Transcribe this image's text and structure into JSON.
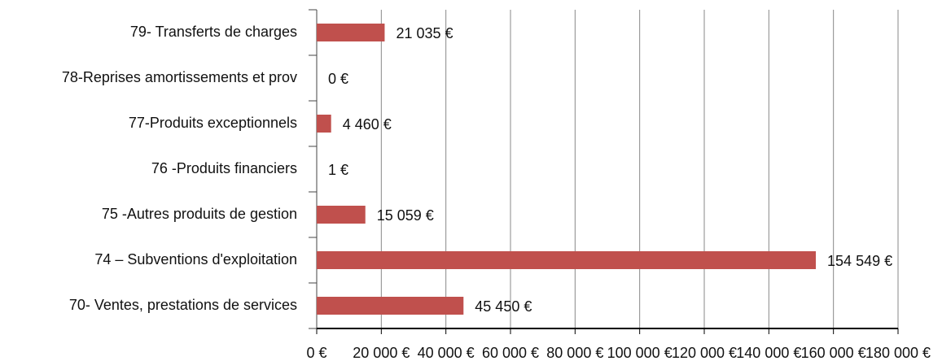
{
  "chart_data": {
    "type": "hbar",
    "categories": [
      "79- Transferts de charges",
      "78-Reprises amortissements et prov",
      "77-Produits exceptionnels",
      "76 -Produits financiers",
      "75 -Autres produits de gestion",
      "74 – Subventions d'exploitation",
      "70- Ventes, prestations de services"
    ],
    "values": [
      21035,
      0,
      4460,
      1,
      15059,
      154549,
      45450
    ],
    "value_labels": [
      "21 035 €",
      "0 €",
      "4 460 €",
      "1 €",
      "15 059 €",
      "154 549 €",
      "45 450 €"
    ],
    "color": "#c0504d",
    "xlim": [
      0,
      180000
    ],
    "xticks": [
      {
        "value": 0,
        "label": "0 €"
      },
      {
        "value": 20000,
        "label": "20 000 €"
      },
      {
        "value": 40000,
        "label": "40 000 €"
      },
      {
        "value": 60000,
        "label": "60 000 €"
      },
      {
        "value": 80000,
        "label": "80 000 €"
      },
      {
        "value": 100000,
        "label": "100 000 €"
      },
      {
        "value": 120000,
        "label": "120 000 €"
      },
      {
        "value": 140000,
        "label": "140 000 €"
      },
      {
        "value": 160000,
        "label": "160 000 €"
      },
      {
        "value": 180000,
        "label": "180 000 €"
      }
    ],
    "grid": true
  }
}
